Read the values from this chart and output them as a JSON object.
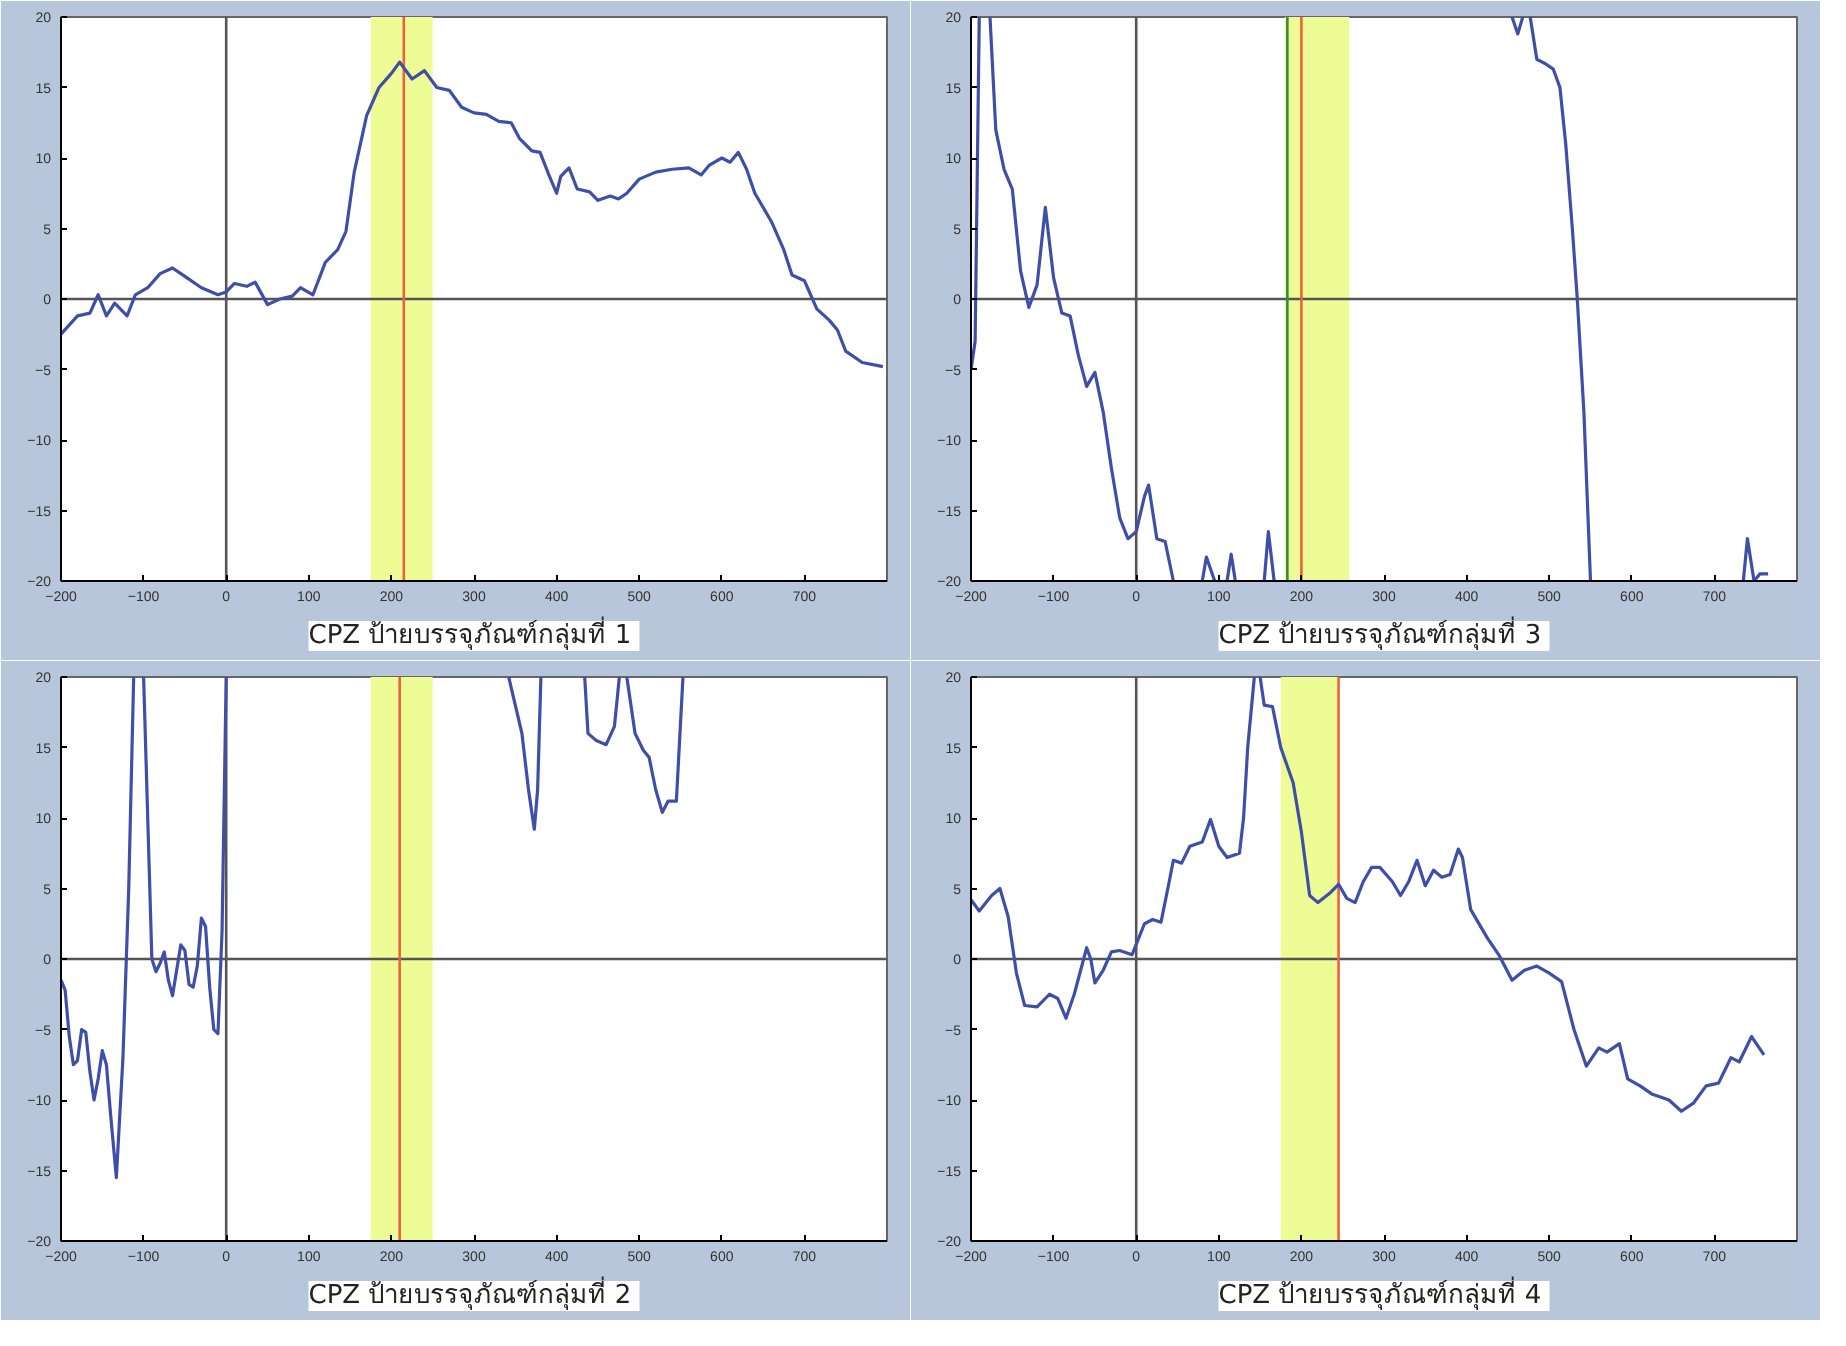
{
  "chart_data": [
    {
      "type": "line",
      "title": "CPZ  ป้ายบรรจุภัณฑ์กลุ่มที่ 1",
      "xlim": [
        -200,
        800
      ],
      "ylim": [
        -20,
        20
      ],
      "xticks": [
        -200,
        -100,
        0,
        100,
        200,
        300,
        400,
        500,
        600,
        700
      ],
      "yticks": [
        -20,
        -15,
        -10,
        -5,
        0,
        5,
        10,
        15,
        20
      ],
      "grid": false,
      "x": [
        -200,
        -180,
        -165,
        -155,
        -145,
        -135,
        -120,
        -110,
        -95,
        -80,
        -65,
        -50,
        -30,
        -10,
        0,
        10,
        25,
        35,
        50,
        65,
        80,
        90,
        105,
        120,
        135,
        145,
        155,
        170,
        185,
        200,
        210,
        225,
        240,
        255,
        270,
        285,
        300,
        315,
        330,
        345,
        355,
        370,
        380,
        390,
        400,
        405,
        415,
        425,
        440,
        450,
        465,
        475,
        485,
        500,
        520,
        540,
        560,
        575,
        585,
        600,
        610,
        620,
        630,
        640,
        660,
        675,
        685,
        700,
        715,
        730,
        740,
        750,
        770,
        795
      ],
      "series": [
        {
          "color": "#3f4fa8",
          "values": [
            -2.5,
            -1.2,
            -1,
            0.3,
            -1.2,
            -0.3,
            -1.2,
            0.3,
            0.8,
            1.8,
            2.2,
            1.6,
            0.8,
            0.3,
            0.5,
            1.1,
            0.9,
            1.2,
            -0.4,
            0,
            0.2,
            0.8,
            0.3,
            2.6,
            3.5,
            4.8,
            9,
            13,
            15,
            16,
            16.8,
            15.6,
            16.2,
            15,
            14.8,
            13.6,
            13.2,
            13.1,
            12.6,
            12.5,
            11.4,
            10.5,
            10.4,
            8.9,
            7.5,
            8.7,
            9.3,
            7.8,
            7.6,
            7,
            7.3,
            7.1,
            7.5,
            8.5,
            9,
            9.2,
            9.3,
            8.8,
            9.5,
            10,
            9.7,
            10.4,
            9.2,
            7.5,
            5.5,
            3.5,
            1.7,
            1.3,
            -0.7,
            -1.5,
            -2.2,
            -3.7,
            -4.5,
            -4.8
          ]
        }
      ],
      "bands": [
        {
          "axis": "x",
          "from": 175,
          "to": 250,
          "color": "#eefc96"
        }
      ],
      "ref_lines": [
        {
          "axis": "x",
          "value": 0,
          "color": "#555555"
        },
        {
          "axis": "y",
          "value": 0,
          "color": "#555555"
        },
        {
          "axis": "x",
          "value": 215,
          "color": "#f06040"
        }
      ]
    },
    {
      "type": "line",
      "title": "CPZ  ป้ายบรรจุภัณฑ์กลุ่มที่ 3",
      "xlim": [
        -200,
        800
      ],
      "ylim": [
        -20,
        20
      ],
      "xticks": [
        -200,
        -100,
        0,
        100,
        200,
        300,
        400,
        500,
        600,
        700
      ],
      "yticks": [
        -20,
        -15,
        -10,
        -5,
        0,
        5,
        10,
        15,
        20
      ],
      "grid": false,
      "x": [
        -200,
        -195,
        -190,
        -185,
        -177,
        -170,
        -160,
        -150,
        -140,
        -130,
        -120,
        -110,
        -100,
        -90,
        -80,
        -70,
        -60,
        -50,
        -40,
        -30,
        -20,
        -10,
        0,
        10,
        15,
        25,
        35,
        45,
        60,
        80,
        85,
        95,
        100,
        110,
        115,
        120,
        140,
        155,
        160,
        167,
        300,
        455,
        462,
        468,
        472,
        477,
        485,
        495,
        505,
        513,
        520,
        528,
        534,
        542,
        550,
        600,
        735,
        740,
        748,
        755,
        765
      ],
      "series": [
        {
          "color": "#3f4fa8",
          "values": [
            -5,
            -3,
            20,
            null,
            20,
            12,
            9.2,
            7.8,
            2,
            -0.6,
            1,
            6.5,
            1.5,
            -1,
            -1.2,
            -4,
            -6.2,
            -5.2,
            -8,
            -12,
            -15.5,
            -17,
            -16.5,
            -14,
            -13.2,
            -17,
            -17.2,
            -20,
            null,
            -20,
            -18.3,
            -20,
            null,
            -20,
            -18.1,
            -20,
            null,
            -20,
            -16.5,
            -20,
            null,
            20,
            18.8,
            20,
            null,
            20,
            17,
            16.7,
            16.3,
            15,
            11,
            5,
            0,
            -8,
            -20,
            null,
            -20,
            -17,
            -20,
            -19.5,
            -19.5
          ]
        }
      ],
      "bands": [
        {
          "axis": "x",
          "from": 180,
          "to": 258,
          "color": "#eefc96"
        }
      ],
      "ref_lines": [
        {
          "axis": "x",
          "value": 0,
          "color": "#555555"
        },
        {
          "axis": "y",
          "value": 0,
          "color": "#555555"
        },
        {
          "axis": "x",
          "value": 183,
          "color": "#3a8a3a"
        },
        {
          "axis": "x",
          "value": 200,
          "color": "#f06040"
        }
      ]
    },
    {
      "type": "line",
      "title": "CPZ  ป้ายบรรจุภัณฑ์กลุ่มที่ 2",
      "xlim": [
        -200,
        800
      ],
      "ylim": [
        -20,
        20
      ],
      "xticks": [
        -200,
        -100,
        0,
        100,
        200,
        300,
        400,
        500,
        600,
        700
      ],
      "yticks": [
        -20,
        -15,
        -10,
        -5,
        0,
        5,
        10,
        15,
        20
      ],
      "grid": false,
      "x": [
        -200,
        -195,
        -190,
        -185,
        -180,
        -175,
        -170,
        -165,
        -160,
        -155,
        -150,
        -145,
        -140,
        -133,
        -125,
        -118,
        -112,
        -106,
        -100,
        -95,
        -90,
        -85,
        -80,
        -75,
        -70,
        -65,
        -60,
        -55,
        -50,
        -45,
        -40,
        -35,
        -30,
        -25,
        -20,
        -15,
        -10,
        -5,
        0,
        200,
        342,
        350,
        358,
        366,
        373,
        377,
        381,
        400,
        434,
        438,
        448,
        460,
        470,
        476,
        480,
        485,
        495,
        505,
        512,
        520,
        528,
        535,
        545,
        553
      ],
      "series": [
        {
          "color": "#3f4fa8",
          "values": [
            -1.5,
            -2.2,
            -5.5,
            -7.5,
            -7.2,
            -5,
            -5.2,
            -8,
            -10,
            -8.5,
            -6.5,
            -7.5,
            -11,
            -15.5,
            -7,
            5,
            20,
            null,
            20,
            10,
            0,
            -0.9,
            -0.3,
            0.5,
            -1.5,
            -2.6,
            -0.8,
            1,
            0.6,
            -1.8,
            -2,
            -0.5,
            2.9,
            2.3,
            -2,
            -5,
            -5.3,
            2,
            20,
            null,
            20,
            18,
            16,
            12,
            9.2,
            12,
            20,
            null,
            20,
            16,
            15.5,
            15.2,
            16.5,
            20,
            null,
            20,
            16,
            14.8,
            14.3,
            12,
            10.4,
            11.2,
            11.2,
            20
          ]
        }
      ],
      "bands": [
        {
          "axis": "x",
          "from": 175,
          "to": 250,
          "color": "#eefc96"
        }
      ],
      "ref_lines": [
        {
          "axis": "x",
          "value": 0,
          "color": "#555555"
        },
        {
          "axis": "y",
          "value": 0,
          "color": "#555555"
        },
        {
          "axis": "x",
          "value": 210,
          "color": "#f06040"
        }
      ]
    },
    {
      "type": "line",
      "title": "CPZ  ป้ายบรรจุภัณฑ์กลุ่มที่ 4",
      "xlim": [
        -200,
        800
      ],
      "ylim": [
        -20,
        20
      ],
      "xticks": [
        -200,
        -100,
        0,
        100,
        200,
        300,
        400,
        500,
        600,
        700
      ],
      "yticks": [
        -20,
        -15,
        -10,
        -5,
        0,
        5,
        10,
        15,
        20
      ],
      "grid": false,
      "x": [
        -200,
        -190,
        -175,
        -165,
        -155,
        -145,
        -135,
        -120,
        -105,
        -95,
        -85,
        -75,
        -60,
        -55,
        -50,
        -40,
        -30,
        -20,
        -5,
        10,
        20,
        30,
        40,
        45,
        55,
        65,
        80,
        90,
        100,
        110,
        125,
        130,
        135,
        143,
        146,
        150,
        155,
        165,
        175,
        190,
        200,
        210,
        220,
        235,
        245,
        255,
        265,
        275,
        285,
        295,
        310,
        320,
        330,
        340,
        350,
        360,
        370,
        380,
        390,
        395,
        405,
        425,
        440,
        455,
        470,
        485,
        500,
        515,
        530,
        545,
        560,
        570,
        585,
        595,
        610,
        625,
        645,
        660,
        675,
        690,
        705,
        720,
        730,
        745,
        760
      ],
      "series": [
        {
          "color": "#3f4fa8",
          "values": [
            4.2,
            3.4,
            4.5,
            5,
            3,
            -1,
            -3.3,
            -3.4,
            -2.5,
            -2.8,
            -4.2,
            -2.5,
            0.8,
            0,
            -1.7,
            -0.8,
            0.5,
            0.6,
            0.3,
            2.5,
            2.8,
            2.6,
            5.5,
            7,
            6.8,
            8,
            8.3,
            9.9,
            8,
            7.2,
            7.5,
            10,
            15,
            20,
            null,
            20,
            18,
            17.9,
            15,
            12.5,
            9,
            4.5,
            4,
            4.7,
            5.3,
            4.3,
            4,
            5.5,
            6.5,
            6.5,
            5.5,
            4.5,
            5.5,
            7,
            5.2,
            6.3,
            5.8,
            6,
            7.8,
            7.2,
            3.5,
            1.5,
            0.2,
            -1.5,
            -0.8,
            -0.5,
            -1,
            -1.6,
            -5,
            -7.6,
            -6.3,
            -6.6,
            -6,
            -8.5,
            -9,
            -9.6,
            -10,
            -10.8,
            -10.2,
            -9,
            -8.8,
            -7,
            -7.3,
            -5.5,
            -6.8
          ]
        }
      ],
      "bands": [
        {
          "axis": "x",
          "from": 175,
          "to": 245,
          "color": "#eefc96"
        }
      ],
      "ref_lines": [
        {
          "axis": "x",
          "value": 0,
          "color": "#555555"
        },
        {
          "axis": "y",
          "value": 0,
          "color": "#555555"
        },
        {
          "axis": "x",
          "value": 245,
          "color": "#f06040"
        }
      ]
    }
  ]
}
